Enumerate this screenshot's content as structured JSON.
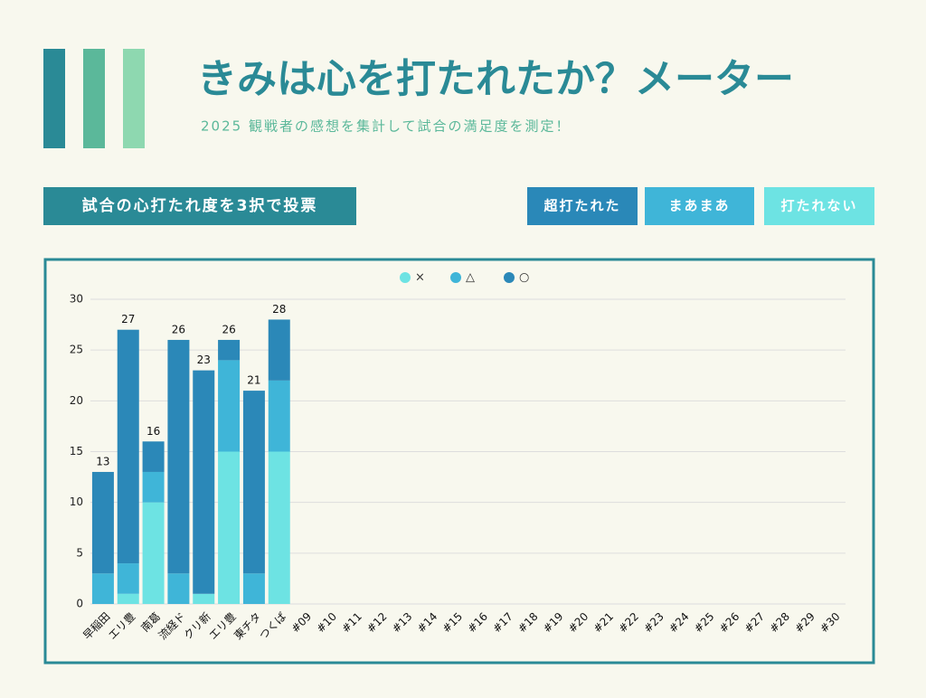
{
  "header": {
    "title": "きみは心を打たれたか？メーター",
    "subtitle": "2025 観戦者の感想を集計して試合の満足度を測定！",
    "vote_label": "試合の心打たれ度を3択で投票"
  },
  "buttons": [
    {
      "label": "超打たれた",
      "color": "#2a88b8"
    },
    {
      "label": "まあまあ",
      "color": "#3fb5d8"
    },
    {
      "label": "打たれない",
      "color": "#6de3e3"
    }
  ],
  "chart_data": {
    "type": "stacked_bar",
    "categories": [
      "早稲田",
      "エリ豊",
      "南葛",
      "流経ド",
      "クリ新",
      "エリ豊",
      "東チタ",
      "つくば",
      "#09",
      "#10",
      "#11",
      "#12",
      "#13",
      "#14",
      "#15",
      "#16",
      "#17",
      "#18",
      "#19",
      "#20",
      "#21",
      "#22",
      "#23",
      "#24",
      "#25",
      "#26",
      "#27",
      "#28",
      "#29",
      "#30"
    ],
    "series": [
      {
        "name": "×",
        "color": "#6de3e3",
        "values": [
          0,
          1,
          10,
          0,
          1,
          15,
          0,
          15,
          null,
          null,
          null,
          null,
          null,
          null,
          null,
          null,
          null,
          null,
          null,
          null,
          null,
          null,
          null,
          null,
          null,
          null,
          null,
          null,
          null,
          null
        ]
      },
      {
        "name": "△",
        "color": "#3fb5d8",
        "values": [
          3,
          3,
          3,
          3,
          0,
          9,
          3,
          7,
          null,
          null,
          null,
          null,
          null,
          null,
          null,
          null,
          null,
          null,
          null,
          null,
          null,
          null,
          null,
          null,
          null,
          null,
          null,
          null,
          null,
          null
        ]
      },
      {
        "name": "○",
        "color": "#2b88b8",
        "values": [
          10,
          23,
          3,
          23,
          22,
          2,
          18,
          6,
          null,
          null,
          null,
          null,
          null,
          null,
          null,
          null,
          null,
          null,
          null,
          null,
          null,
          null,
          null,
          null,
          null,
          null,
          null,
          null,
          null,
          null
        ]
      }
    ],
    "totals": [
      13,
      27,
      16,
      26,
      23,
      26,
      21,
      28,
      null,
      null,
      null,
      null,
      null,
      null,
      null,
      null,
      null,
      null,
      null,
      null,
      null,
      null,
      null,
      null,
      null,
      null,
      null,
      null,
      null,
      null
    ],
    "ylim": [
      0,
      30
    ],
    "yticks": [
      0,
      5,
      10,
      15,
      20,
      25,
      30
    ],
    "grid": true,
    "legend": "top"
  }
}
